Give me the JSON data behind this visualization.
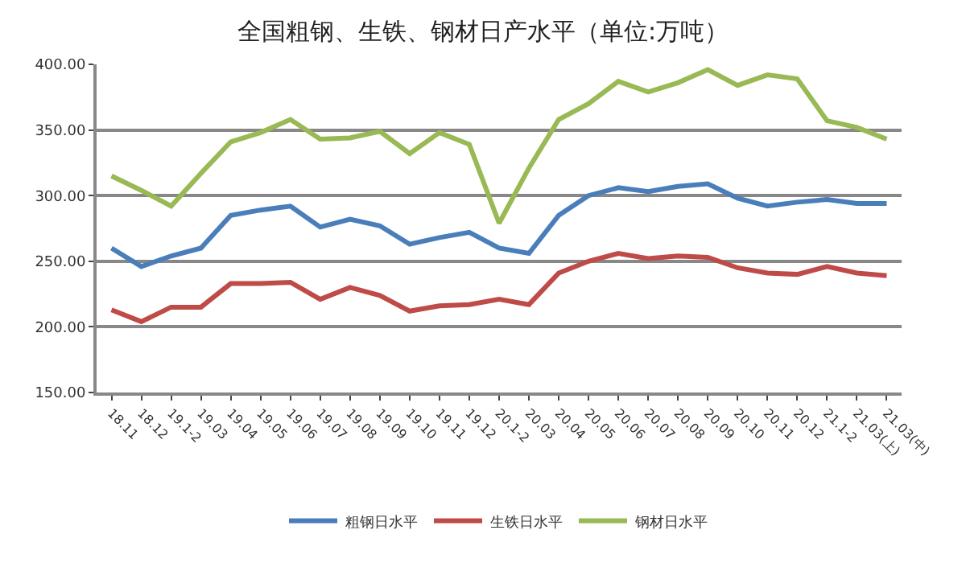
{
  "chart_data": {
    "type": "line",
    "title": "全国粗钢、生铁、钢材日产水平（单位:万吨）",
    "categories": [
      "18.11",
      "18.12",
      "19.1-2",
      "19.03",
      "19.04",
      "19.05",
      "19.06",
      "19.07",
      "19.08",
      "19.09",
      "19.10",
      "19.11",
      "19.12",
      "20.1-2",
      "20.03",
      "20.04",
      "20.05",
      "20.06",
      "20.07",
      "20.08",
      "20.09",
      "20.10",
      "20.11",
      "20.12",
      "21.1-2",
      "21.03(上)",
      "21.03(中)"
    ],
    "series": [
      {
        "name": "粗钢日水平",
        "color": "#4a7ebb",
        "values": [
          260,
          246,
          254,
          260,
          285,
          289,
          292,
          276,
          282,
          277,
          263,
          268,
          272,
          260,
          256,
          285,
          300,
          306,
          303,
          307,
          309,
          298,
          292,
          295,
          297,
          294,
          294
        ]
      },
      {
        "name": "生铁日水平",
        "color": "#be4b48",
        "values": [
          213,
          204,
          215,
          215,
          233,
          233,
          234,
          221,
          230,
          224,
          212,
          216,
          217,
          221,
          217,
          241,
          250,
          256,
          252,
          254,
          253,
          245,
          241,
          240,
          246,
          241,
          239
        ]
      },
      {
        "name": "钢材日水平",
        "color": "#98b954",
        "values": [
          315,
          304,
          292,
          317,
          341,
          348,
          358,
          343,
          344,
          349,
          332,
          348,
          339,
          279,
          321,
          358,
          370,
          387,
          379,
          386,
          396,
          384,
          392,
          389,
          357,
          352,
          343
        ]
      }
    ],
    "ylim": [
      150,
      400
    ],
    "yticks": [
      {
        "value": 150,
        "label": "150.00"
      },
      {
        "value": 200,
        "label": "200.00"
      },
      {
        "value": 250,
        "label": "250.00"
      },
      {
        "value": 300,
        "label": "300.00"
      },
      {
        "value": 350,
        "label": "350.00"
      },
      {
        "value": 400,
        "label": "400.00"
      }
    ],
    "grid": "y",
    "legend": "bottom",
    "marker": "none",
    "line_style": "solid"
  }
}
